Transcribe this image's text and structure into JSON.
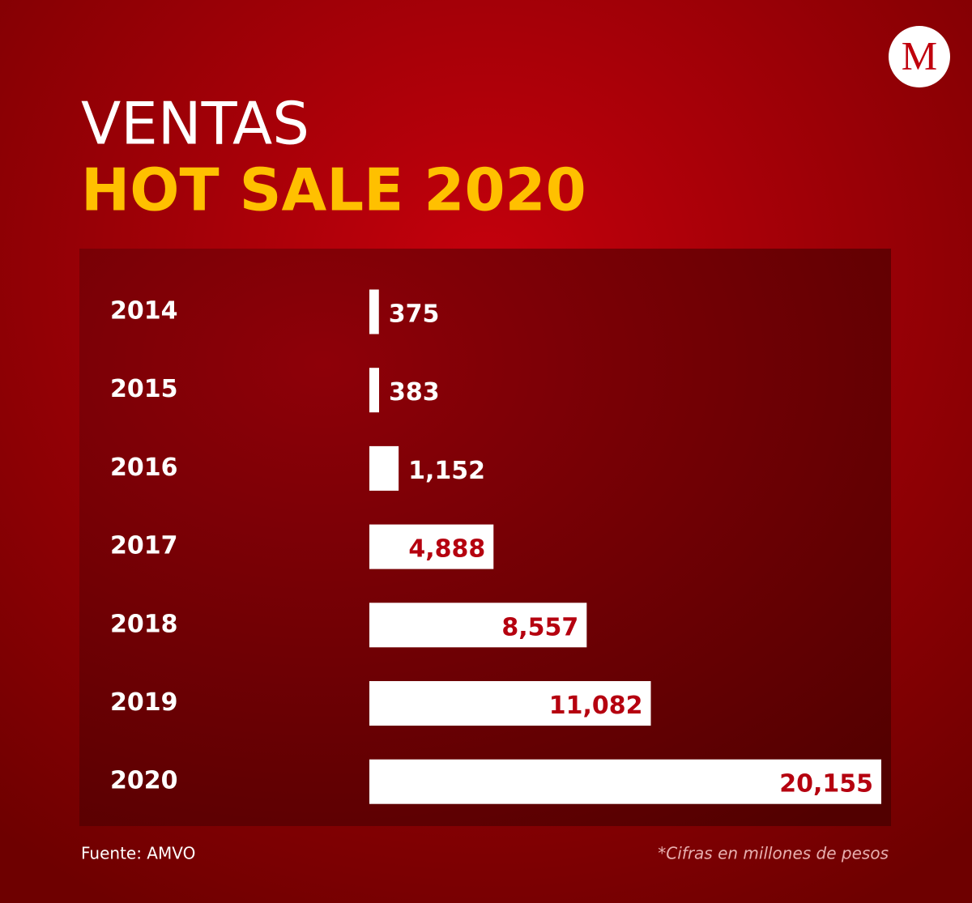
{
  "chart_data": {
    "type": "bar",
    "orientation": "horizontal",
    "logo": "M",
    "title": "VENTAS",
    "subtitle": "HOT SALE 2020",
    "categories": [
      "2014",
      "2015",
      "2016",
      "2017",
      "2018",
      "2019",
      "2020"
    ],
    "values": [
      375,
      383,
      1152,
      4888,
      8557,
      11082,
      20155
    ],
    "value_labels": [
      "375",
      "383",
      "1,152",
      "4,888",
      "8,557",
      "11,082",
      "20,155"
    ],
    "color": "#ffffff",
    "source": "Fuente: AMVO",
    "note": "*Cifras en millones de pesos"
  }
}
